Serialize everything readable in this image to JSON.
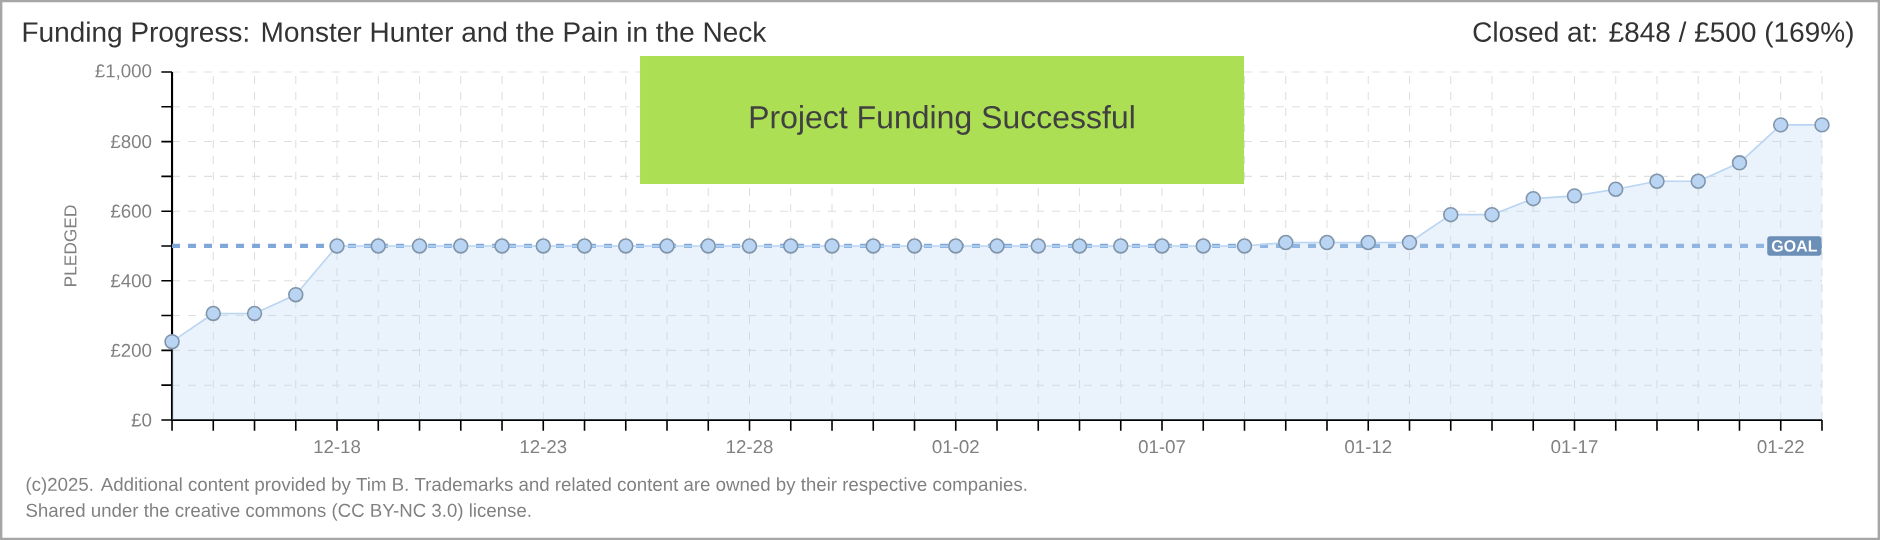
{
  "chart_data": {
    "type": "area",
    "title": "Funding Progress: Monster Hunter and the Pain in the Neck",
    "subtitle": "Closed at:  £848 / £500 (169%)",
    "ylabel": "PLEDGED",
    "annotations": [
      "Project Funding Successful",
      "(c)2025. Additional content provided by Tim B. Trademarks and related content are owned by their respective companies.",
      "Shared under the creative commons (CC BY-NC 3.0) license."
    ],
    "x": [
      "2024-12-14",
      "2024-12-15",
      "2024-12-16",
      "2024-12-17",
      "2024-12-18",
      "2024-12-19",
      "2024-12-20",
      "2024-12-21",
      "2024-12-22",
      "2024-12-23",
      "2024-12-24",
      "2024-12-25",
      "2024-12-26",
      "2024-12-27",
      "2024-12-28",
      "2024-12-29",
      "2024-12-30",
      "2024-12-31",
      "2025-01-01",
      "2025-01-02",
      "2025-01-03",
      "2025-01-04",
      "2025-01-05",
      "2025-01-06",
      "2025-01-07",
      "2025-01-08",
      "2025-01-09",
      "2025-01-10",
      "2025-01-11",
      "2025-01-12",
      "2025-01-13",
      "2025-01-14",
      "2025-01-15",
      "2025-01-16",
      "2025-01-17",
      "2025-01-18",
      "2025-01-19",
      "2025-01-20",
      "2025-01-21",
      "2025-01-22",
      "2025-01-23"
    ],
    "series": [
      {
        "color": "#b9d5f3",
        "values": [
          225,
          306,
          306,
          360,
          500,
          500,
          500,
          500,
          500,
          500,
          500,
          500,
          500,
          500,
          500,
          500,
          500,
          500,
          500,
          500,
          500,
          500,
          500,
          500,
          500,
          500,
          500,
          510,
          510,
          510,
          510,
          590,
          590,
          636,
          644,
          663,
          686,
          686,
          739,
          848,
          848
        ]
      }
    ],
    "xlim": [
      "2024-12-14",
      "2025-01-23"
    ],
    "xticks": [
      {
        "value": "2024-12-14",
        "label": null
      },
      {
        "value": "2024-12-15",
        "label": null
      },
      {
        "value": "2024-12-16",
        "label": null
      },
      {
        "value": "2024-12-17",
        "label": null
      },
      {
        "value": "2024-12-18",
        "label": "12-18"
      },
      {
        "value": "2024-12-19",
        "label": null
      },
      {
        "value": "2024-12-20",
        "label": null
      },
      {
        "value": "2024-12-21",
        "label": null
      },
      {
        "value": "2024-12-22",
        "label": null
      },
      {
        "value": "2024-12-23",
        "label": "12-23"
      },
      {
        "value": "2024-12-24",
        "label": null
      },
      {
        "value": "2024-12-25",
        "label": null
      },
      {
        "value": "2024-12-26",
        "label": null
      },
      {
        "value": "2024-12-27",
        "label": null
      },
      {
        "value": "2024-12-28",
        "label": "12-28"
      },
      {
        "value": "2024-12-29",
        "label": null
      },
      {
        "value": "2024-12-30",
        "label": null
      },
      {
        "value": "2024-12-31",
        "label": null
      },
      {
        "value": "2025-01-01",
        "label": null
      },
      {
        "value": "2025-01-02",
        "label": "01-02"
      },
      {
        "value": "2025-01-03",
        "label": null
      },
      {
        "value": "2025-01-04",
        "label": null
      },
      {
        "value": "2025-01-05",
        "label": null
      },
      {
        "value": "2025-01-06",
        "label": null
      },
      {
        "value": "2025-01-07",
        "label": "01-07"
      },
      {
        "value": "2025-01-08",
        "label": null
      },
      {
        "value": "2025-01-09",
        "label": null
      },
      {
        "value": "2025-01-10",
        "label": null
      },
      {
        "value": "2025-01-11",
        "label": null
      },
      {
        "value": "2025-01-12",
        "label": "01-12"
      },
      {
        "value": "2025-01-13",
        "label": null
      },
      {
        "value": "2025-01-14",
        "label": null
      },
      {
        "value": "2025-01-15",
        "label": null
      },
      {
        "value": "2025-01-16",
        "label": null
      },
      {
        "value": "2025-01-17",
        "label": "01-17"
      },
      {
        "value": "2025-01-18",
        "label": null
      },
      {
        "value": "2025-01-19",
        "label": null
      },
      {
        "value": "2025-01-20",
        "label": null
      },
      {
        "value": "2025-01-21",
        "label": null
      },
      {
        "value": "2025-01-22",
        "label": "01-22"
      },
      {
        "value": "2025-01-23",
        "label": null
      }
    ],
    "ylim": [
      0,
      1000
    ],
    "yticks": [
      {
        "value": 0,
        "label": "£0"
      },
      {
        "value": 100,
        "label": null
      },
      {
        "value": 200,
        "label": "£200"
      },
      {
        "value": 300,
        "label": null
      },
      {
        "value": 400,
        "label": "£400"
      },
      {
        "value": 500,
        "label": null
      },
      {
        "value": 600,
        "label": "£600"
      },
      {
        "value": 700,
        "label": null
      },
      {
        "value": 800,
        "label": "£800"
      },
      {
        "value": 900,
        "label": null
      },
      {
        "value": 1000,
        "label": "£1,000"
      }
    ],
    "ref_lines": [
      {
        "axis": "y",
        "value": 500,
        "label": "GOAL",
        "color": "#7fa8d8",
        "line_style": "dashed"
      }
    ],
    "grid": true,
    "marker": "circle",
    "line_style": "solid"
  }
}
